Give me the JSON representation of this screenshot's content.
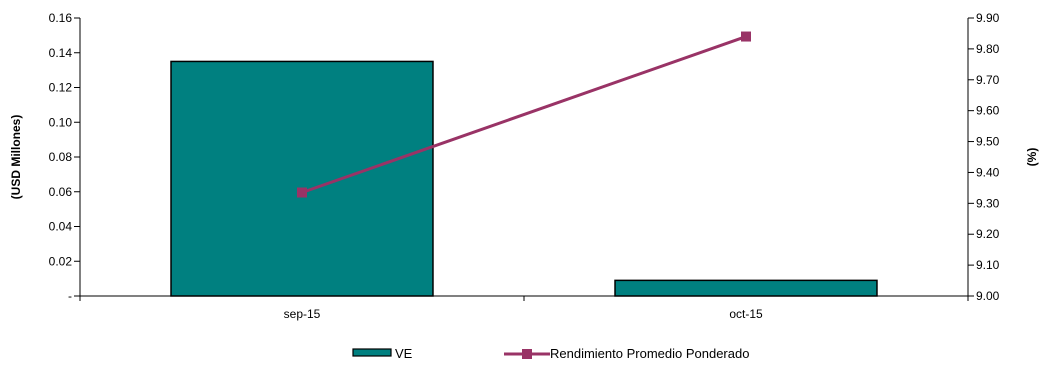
{
  "chart_data": {
    "type": "bar",
    "categories": [
      "sep-15",
      "oct-15"
    ],
    "series": [
      {
        "name": "VE",
        "type": "bar",
        "axis": "left",
        "values": [
          0.135,
          0.009
        ],
        "color": "#008080"
      },
      {
        "name": "Rendimiento Promedio Ponderado",
        "type": "line",
        "axis": "right",
        "values": [
          9.335,
          9.84
        ],
        "color": "#993366"
      }
    ],
    "left_axis": {
      "label": "(USD Millones)",
      "range": [
        0,
        0.16
      ],
      "ticks": [
        "-",
        "0.02",
        "0.04",
        "0.06",
        "0.08",
        "0.10",
        "0.12",
        "0.14",
        "0.16"
      ]
    },
    "right_axis": {
      "label": "(%)",
      "range": [
        9.0,
        9.9
      ],
      "ticks": [
        "9.00",
        "9.10",
        "9.20",
        "9.30",
        "9.40",
        "9.50",
        "9.60",
        "9.70",
        "9.80",
        "9.90"
      ]
    },
    "grid": false,
    "legend_position": "bottom"
  }
}
